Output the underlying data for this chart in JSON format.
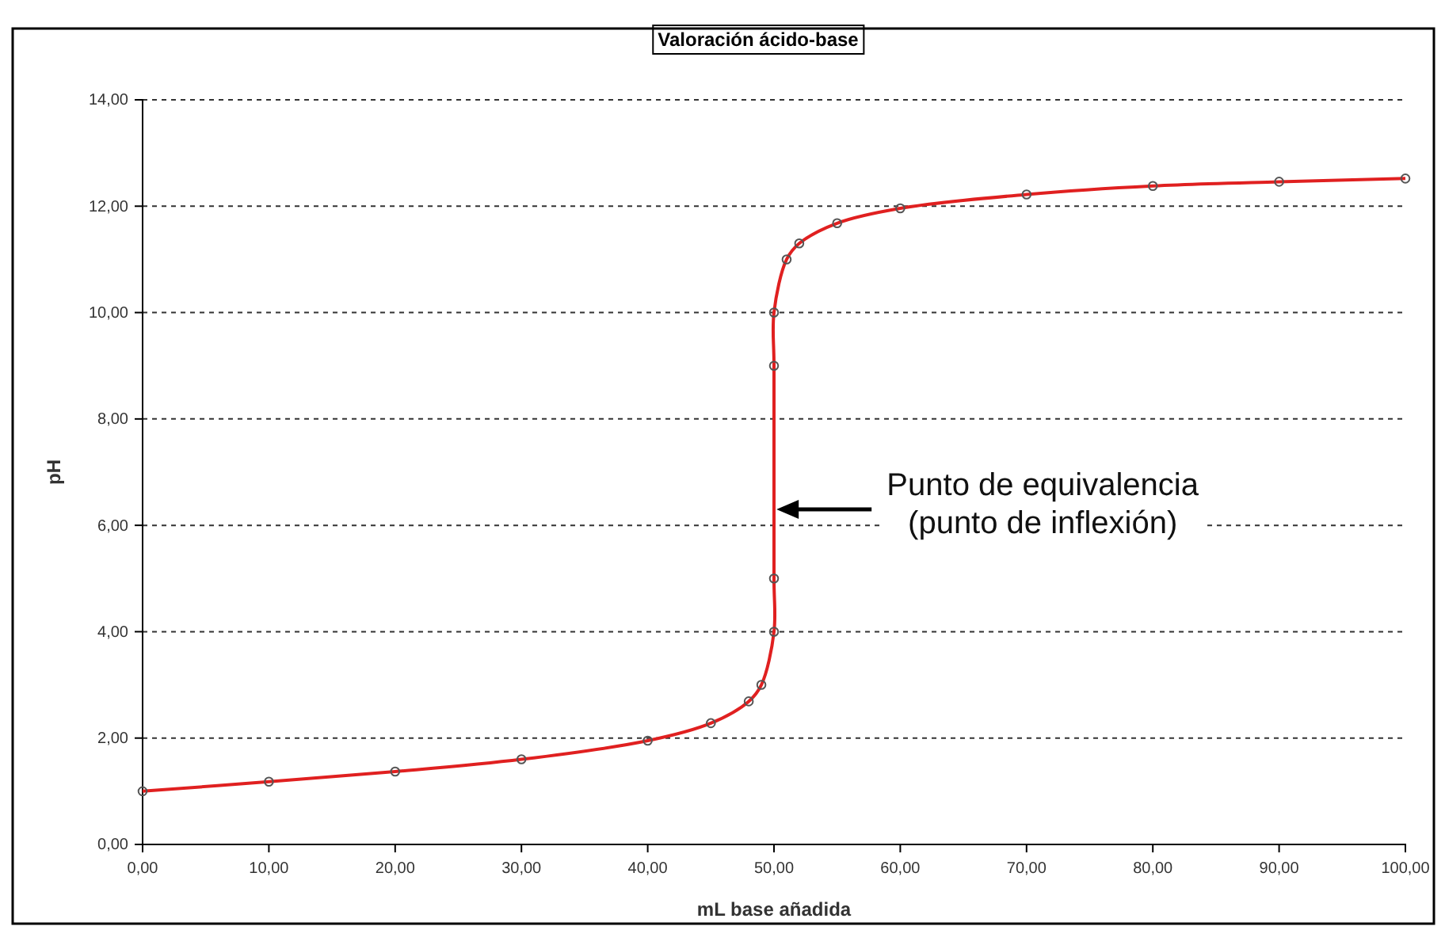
{
  "chart_data": {
    "type": "line",
    "title": "Valoración ácido-base",
    "xlabel": "mL base añadida",
    "ylabel": "pH",
    "x": [
      0,
      10,
      20,
      30,
      40,
      45,
      48,
      49,
      50,
      50,
      50,
      50,
      51,
      52,
      55,
      60,
      70,
      80,
      90,
      100
    ],
    "series": [
      {
        "color": "#e02020",
        "values": [
          1.0,
          1.18,
          1.37,
          1.6,
          1.95,
          2.28,
          2.69,
          3.0,
          4.0,
          5.0,
          9.0,
          10.0,
          11.0,
          11.3,
          11.68,
          11.96,
          12.22,
          12.38,
          12.46,
          12.52
        ]
      }
    ],
    "xlim": [
      0,
      100
    ],
    "xticks": [
      {
        "value": 0,
        "label": "0,00"
      },
      {
        "value": 10,
        "label": "10,00"
      },
      {
        "value": 20,
        "label": "20,00"
      },
      {
        "value": 30,
        "label": "30,00"
      },
      {
        "value": 40,
        "label": "40,00"
      },
      {
        "value": 50,
        "label": "50,00"
      },
      {
        "value": 60,
        "label": "60,00"
      },
      {
        "value": 70,
        "label": "70,00"
      },
      {
        "value": 80,
        "label": "80,00"
      },
      {
        "value": 90,
        "label": "90,00"
      },
      {
        "value": 100,
        "label": "100,00"
      }
    ],
    "ylim": [
      0,
      14
    ],
    "yticks": [
      {
        "value": 0,
        "label": "0,00"
      },
      {
        "value": 2,
        "label": "2,00"
      },
      {
        "value": 4,
        "label": "4,00"
      },
      {
        "value": 6,
        "label": "6,00"
      },
      {
        "value": 8,
        "label": "8,00"
      },
      {
        "value": 10,
        "label": "10,00"
      },
      {
        "value": 12,
        "label": "12,00"
      },
      {
        "value": 14,
        "label": "14,00"
      }
    ],
    "grid": "y",
    "marker": "circle",
    "line_style": "solid",
    "annotations": [
      "Punto de equivalencia\n(punto de inflexión)"
    ]
  }
}
